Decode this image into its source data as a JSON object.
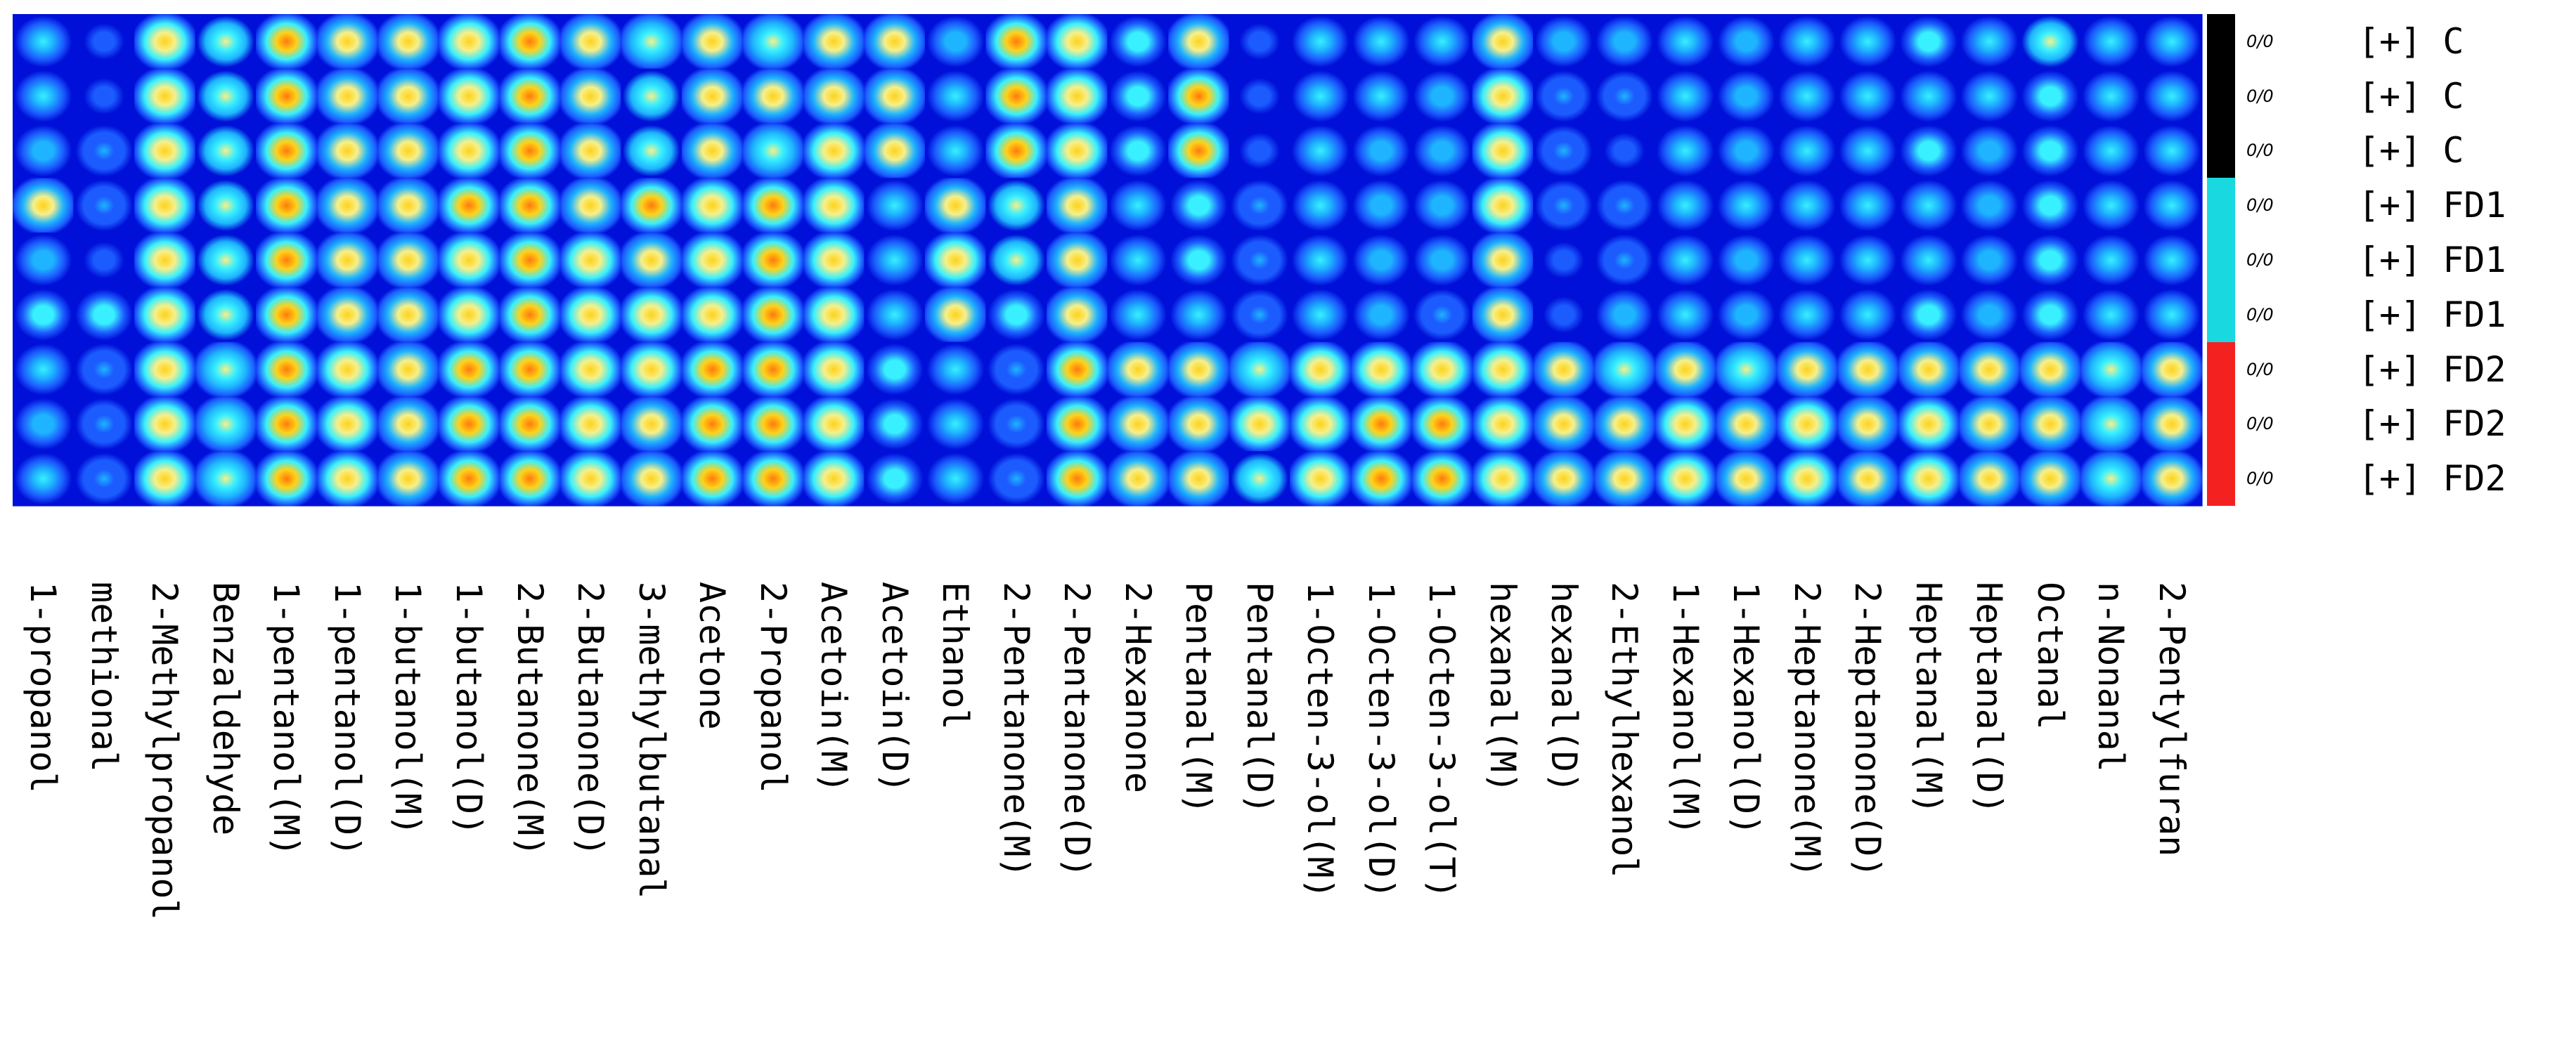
{
  "chart_data": {
    "type": "heatmap",
    "description_note": "",
    "columns": [
      "1-propanol",
      "methional",
      "2-Methylpropanol",
      "Benzaldehyde",
      "1-pentanol(M)",
      "1-pentanol(D)",
      "1-butanol(M)",
      "1-butanol(D)",
      "2-Butanone(M)",
      "2-Butanone(D)",
      "3-methylbutanal",
      "Acetone",
      "2-Propanol",
      "Acetoin(M)",
      "Acetoin(D)",
      "Ethanol",
      "2-Pentanone(M)",
      "2-Pentanone(D)",
      "2-Hexanone",
      "Pentanal(M)",
      "Pentanal(D)",
      "1-Octen-3-ol(M)",
      "1-Octen-3-ol(D)",
      "1-Octen-3-ol(T)",
      "hexanal(M)",
      "hexanal(D)",
      "2-Ethylhexanol",
      "1-Hexanol(M)",
      "1-Hexanol(D)",
      "2-Heptanone(M)",
      "2-Heptanone(D)",
      "Heptanal(M)",
      "Heptanal(D)",
      "Octanal",
      "n-Nonanal",
      "2-Pentylfuran"
    ],
    "rows": [
      {
        "value_label": "0/0",
        "prefix": "[+]",
        "group": "C"
      },
      {
        "value_label": "0/0",
        "prefix": "[+]",
        "group": "C"
      },
      {
        "value_label": "0/0",
        "prefix": "[+]",
        "group": "C"
      },
      {
        "value_label": "0/0",
        "prefix": "[+]",
        "group": "FD1"
      },
      {
        "value_label": "0/0",
        "prefix": "[+]",
        "group": "FD1"
      },
      {
        "value_label": "0/0",
        "prefix": "[+]",
        "group": "FD1"
      },
      {
        "value_label": "0/0",
        "prefix": "[+]",
        "group": "FD2"
      },
      {
        "value_label": "0/0",
        "prefix": "[+]",
        "group": "FD2"
      },
      {
        "value_label": "0/0",
        "prefix": "[+]",
        "group": "FD2"
      }
    ],
    "group_colors": {
      "C": "#000000",
      "FD1": "#19d8e0",
      "FD2": "#f42121"
    },
    "colormap": [
      "#00007a",
      "#0010d8",
      "#1c5cff",
      "#1eb4ff",
      "#38f0ff",
      "#f6f08a",
      "#ffd21a",
      "#ff7a0a",
      "#e6140a"
    ],
    "intensities": [
      [
        0.45,
        0.3,
        0.8,
        0.6,
        0.85,
        0.75,
        0.7,
        0.8,
        0.85,
        0.75,
        0.65,
        0.75,
        0.65,
        0.75,
        0.75,
        0.4,
        0.9,
        0.8,
        0.55,
        0.7,
        0.25,
        0.45,
        0.45,
        0.45,
        0.75,
        0.4,
        0.4,
        0.45,
        0.4,
        0.5,
        0.45,
        0.55,
        0.45,
        0.6,
        0.5,
        0.5
      ],
      [
        0.5,
        0.3,
        0.8,
        0.6,
        0.85,
        0.75,
        0.7,
        0.8,
        0.85,
        0.75,
        0.6,
        0.75,
        0.7,
        0.75,
        0.75,
        0.45,
        0.9,
        0.8,
        0.55,
        0.85,
        0.3,
        0.45,
        0.45,
        0.4,
        0.8,
        0.35,
        0.35,
        0.45,
        0.4,
        0.5,
        0.45,
        0.5,
        0.45,
        0.55,
        0.5,
        0.5
      ],
      [
        0.4,
        0.35,
        0.8,
        0.6,
        0.85,
        0.75,
        0.7,
        0.8,
        0.85,
        0.75,
        0.6,
        0.75,
        0.65,
        0.8,
        0.75,
        0.45,
        0.85,
        0.8,
        0.55,
        0.85,
        0.3,
        0.45,
        0.4,
        0.4,
        0.8,
        0.35,
        0.3,
        0.45,
        0.4,
        0.5,
        0.45,
        0.55,
        0.4,
        0.55,
        0.5,
        0.5
      ],
      [
        0.75,
        0.35,
        0.8,
        0.6,
        0.85,
        0.75,
        0.75,
        0.85,
        0.85,
        0.75,
        0.9,
        0.8,
        0.85,
        0.8,
        0.45,
        0.75,
        0.6,
        0.75,
        0.5,
        0.55,
        0.35,
        0.45,
        0.4,
        0.4,
        0.8,
        0.35,
        0.35,
        0.45,
        0.45,
        0.5,
        0.45,
        0.5,
        0.4,
        0.55,
        0.45,
        0.5
      ],
      [
        0.4,
        0.3,
        0.8,
        0.6,
        0.85,
        0.75,
        0.7,
        0.8,
        0.85,
        0.8,
        0.75,
        0.8,
        0.85,
        0.8,
        0.45,
        0.8,
        0.6,
        0.75,
        0.45,
        0.55,
        0.35,
        0.45,
        0.4,
        0.4,
        0.75,
        0.3,
        0.35,
        0.45,
        0.4,
        0.5,
        0.45,
        0.5,
        0.4,
        0.55,
        0.45,
        0.5
      ],
      [
        0.55,
        0.55,
        0.8,
        0.6,
        0.85,
        0.75,
        0.7,
        0.8,
        0.85,
        0.8,
        0.8,
        0.8,
        0.85,
        0.8,
        0.45,
        0.75,
        0.55,
        0.75,
        0.45,
        0.5,
        0.35,
        0.45,
        0.4,
        0.35,
        0.75,
        0.3,
        0.4,
        0.45,
        0.4,
        0.5,
        0.45,
        0.55,
        0.4,
        0.55,
        0.45,
        0.5
      ],
      [
        0.45,
        0.35,
        0.8,
        0.65,
        0.85,
        0.8,
        0.75,
        0.85,
        0.85,
        0.8,
        0.8,
        0.85,
        0.85,
        0.8,
        0.55,
        0.5,
        0.35,
        0.9,
        0.7,
        0.7,
        0.65,
        0.8,
        0.8,
        0.8,
        0.8,
        0.7,
        0.65,
        0.75,
        0.65,
        0.75,
        0.7,
        0.75,
        0.7,
        0.75,
        0.65,
        0.7
      ],
      [
        0.4,
        0.35,
        0.8,
        0.65,
        0.85,
        0.8,
        0.75,
        0.85,
        0.85,
        0.8,
        0.75,
        0.85,
        0.85,
        0.8,
        0.55,
        0.45,
        0.35,
        0.9,
        0.75,
        0.75,
        0.8,
        0.8,
        0.85,
        0.85,
        0.8,
        0.75,
        0.7,
        0.8,
        0.75,
        0.8,
        0.75,
        0.8,
        0.75,
        0.75,
        0.65,
        0.7
      ],
      [
        0.45,
        0.35,
        0.8,
        0.65,
        0.85,
        0.8,
        0.75,
        0.85,
        0.85,
        0.8,
        0.75,
        0.85,
        0.85,
        0.8,
        0.55,
        0.45,
        0.35,
        0.9,
        0.7,
        0.7,
        0.6,
        0.8,
        0.9,
        0.85,
        0.8,
        0.75,
        0.7,
        0.8,
        0.75,
        0.8,
        0.75,
        0.8,
        0.75,
        0.75,
        0.65,
        0.7
      ]
    ]
  }
}
